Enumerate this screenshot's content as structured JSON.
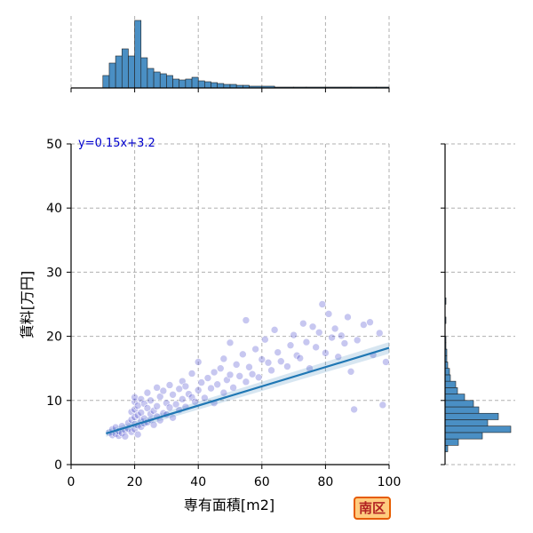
{
  "chart_data": {
    "type": "scatter",
    "xlabel": "専有面積[m2]",
    "ylabel": "賃料[万円]",
    "xlim": [
      0,
      100
    ],
    "ylim": [
      0,
      50
    ],
    "xticks": [
      "0",
      "20",
      "40",
      "60",
      "80",
      "100"
    ],
    "yticks": [
      "0",
      "10",
      "20",
      "30",
      "40",
      "50"
    ],
    "grid": true,
    "regression": {
      "label": "y=0.15x+3.2",
      "slope": 0.15,
      "intercept": 3.2,
      "x_range": [
        11,
        100
      ]
    },
    "scatter_points": [
      [
        12,
        5
      ],
      [
        13,
        4.6
      ],
      [
        13,
        5.5
      ],
      [
        14,
        4.8
      ],
      [
        14,
        5.8
      ],
      [
        15,
        4.5
      ],
      [
        15,
        5.2
      ],
      [
        16,
        4.9
      ],
      [
        16,
        6
      ],
      [
        17,
        5.3
      ],
      [
        17,
        4.4
      ],
      [
        18,
        5.6
      ],
      [
        18,
        6.5
      ],
      [
        19,
        5.1
      ],
      [
        19,
        7
      ],
      [
        19,
        8.2
      ],
      [
        20,
        5.5
      ],
      [
        20,
        6.3
      ],
      [
        20,
        7.4
      ],
      [
        20,
        8.6
      ],
      [
        20,
        9.8
      ],
      [
        20,
        10.5
      ],
      [
        21,
        4.7
      ],
      [
        21,
        6.1
      ],
      [
        21,
        7.7
      ],
      [
        21,
        9.2
      ],
      [
        22,
        5.9
      ],
      [
        22,
        6.8
      ],
      [
        22,
        8.1
      ],
      [
        22,
        10.2
      ],
      [
        23,
        6.4
      ],
      [
        23,
        7.2
      ],
      [
        23,
        9.5
      ],
      [
        24,
        6.6
      ],
      [
        24,
        8.8
      ],
      [
        24,
        11.2
      ],
      [
        25,
        7
      ],
      [
        25,
        7.9
      ],
      [
        25,
        10
      ],
      [
        26,
        6.2
      ],
      [
        26,
        8.4
      ],
      [
        27,
        7.5
      ],
      [
        27,
        9.1
      ],
      [
        27,
        12
      ],
      [
        28,
        6.9
      ],
      [
        28,
        10.6
      ],
      [
        29,
        8
      ],
      [
        29,
        11.5
      ],
      [
        30,
        7.8
      ],
      [
        30,
        9.6
      ],
      [
        31,
        8.9
      ],
      [
        31,
        12.4
      ],
      [
        32,
        7.3
      ],
      [
        32,
        10.9
      ],
      [
        33,
        9.4
      ],
      [
        34,
        8.5
      ],
      [
        34,
        11.8
      ],
      [
        35,
        10.2
      ],
      [
        35,
        13
      ],
      [
        36,
        9
      ],
      [
        36,
        12.2
      ],
      [
        37,
        11
      ],
      [
        38,
        10.5
      ],
      [
        38,
        14.2
      ],
      [
        39,
        9.8
      ],
      [
        40,
        11.6
      ],
      [
        40,
        16
      ],
      [
        41,
        12.8
      ],
      [
        42,
        10.4
      ],
      [
        43,
        13.5
      ],
      [
        44,
        11.9
      ],
      [
        45,
        9.6
      ],
      [
        45,
        14.4
      ],
      [
        46,
        12.5
      ],
      [
        47,
        15
      ],
      [
        48,
        11.2
      ],
      [
        48,
        16.5
      ],
      [
        49,
        13.2
      ],
      [
        50,
        14
      ],
      [
        50,
        19
      ],
      [
        51,
        12
      ],
      [
        52,
        15.6
      ],
      [
        53,
        13.8
      ],
      [
        54,
        17.2
      ],
      [
        55,
        12.9
      ],
      [
        55,
        22.5
      ],
      [
        56,
        15.2
      ],
      [
        57,
        14.1
      ],
      [
        58,
        18
      ],
      [
        59,
        13.6
      ],
      [
        60,
        16.4
      ],
      [
        61,
        19.5
      ],
      [
        62,
        15.9
      ],
      [
        63,
        14.7
      ],
      [
        64,
        21
      ],
      [
        65,
        17.5
      ],
      [
        66,
        16.1
      ],
      [
        68,
        15.3
      ],
      [
        69,
        18.6
      ],
      [
        70,
        20.2
      ],
      [
        71,
        17
      ],
      [
        72,
        16.6
      ],
      [
        73,
        22
      ],
      [
        74,
        19.1
      ],
      [
        75,
        15
      ],
      [
        76,
        21.5
      ],
      [
        77,
        18.3
      ],
      [
        78,
        20.6
      ],
      [
        79,
        25
      ],
      [
        80,
        17.4
      ],
      [
        81,
        23.5
      ],
      [
        82,
        19.8
      ],
      [
        83,
        21.2
      ],
      [
        84,
        16.8
      ],
      [
        85,
        20.1
      ],
      [
        86,
        18.9
      ],
      [
        87,
        23
      ],
      [
        88,
        14.5
      ],
      [
        89,
        8.6
      ],
      [
        90,
        19.4
      ],
      [
        92,
        21.8
      ],
      [
        94,
        22.2
      ],
      [
        95,
        17.1
      ],
      [
        97,
        20.5
      ],
      [
        98,
        9.3
      ],
      [
        99,
        16
      ]
    ],
    "top_histogram": [
      {
        "x0": 10,
        "x1": 12,
        "h": 14
      },
      {
        "x0": 12,
        "x1": 14,
        "h": 28
      },
      {
        "x0": 14,
        "x1": 16,
        "h": 36
      },
      {
        "x0": 16,
        "x1": 18,
        "h": 44
      },
      {
        "x0": 18,
        "x1": 20,
        "h": 36
      },
      {
        "x0": 20,
        "x1": 22,
        "h": 76
      },
      {
        "x0": 22,
        "x1": 24,
        "h": 34
      },
      {
        "x0": 24,
        "x1": 26,
        "h": 22
      },
      {
        "x0": 26,
        "x1": 28,
        "h": 18
      },
      {
        "x0": 28,
        "x1": 30,
        "h": 16
      },
      {
        "x0": 30,
        "x1": 32,
        "h": 14
      },
      {
        "x0": 32,
        "x1": 34,
        "h": 10
      },
      {
        "x0": 34,
        "x1": 36,
        "h": 9
      },
      {
        "x0": 36,
        "x1": 38,
        "h": 10
      },
      {
        "x0": 38,
        "x1": 40,
        "h": 12
      },
      {
        "x0": 40,
        "x1": 42,
        "h": 8
      },
      {
        "x0": 42,
        "x1": 44,
        "h": 7
      },
      {
        "x0": 44,
        "x1": 46,
        "h": 6
      },
      {
        "x0": 46,
        "x1": 48,
        "h": 5
      },
      {
        "x0": 48,
        "x1": 50,
        "h": 4
      },
      {
        "x0": 50,
        "x1": 52,
        "h": 4
      },
      {
        "x0": 52,
        "x1": 54,
        "h": 3
      },
      {
        "x0": 54,
        "x1": 56,
        "h": 3
      },
      {
        "x0": 56,
        "x1": 60,
        "h": 2
      },
      {
        "x0": 60,
        "x1": 64,
        "h": 2
      },
      {
        "x0": 64,
        "x1": 70,
        "h": 1
      },
      {
        "x0": 70,
        "x1": 74,
        "h": 1
      },
      {
        "x0": 74,
        "x1": 80,
        "h": 1
      },
      {
        "x0": 80,
        "x1": 88,
        "h": 1
      },
      {
        "x0": 88,
        "x1": 96,
        "h": 1
      },
      {
        "x0": 96,
        "x1": 100,
        "h": 1
      }
    ],
    "right_histogram": [
      {
        "y0": 2,
        "y1": 3,
        "w": 3
      },
      {
        "y0": 3,
        "y1": 4,
        "w": 15
      },
      {
        "y0": 4,
        "y1": 5,
        "w": 42
      },
      {
        "y0": 5,
        "y1": 6,
        "w": 74
      },
      {
        "y0": 6,
        "y1": 7,
        "w": 48
      },
      {
        "y0": 7,
        "y1": 8,
        "w": 60
      },
      {
        "y0": 8,
        "y1": 9,
        "w": 38
      },
      {
        "y0": 9,
        "y1": 10,
        "w": 32
      },
      {
        "y0": 10,
        "y1": 11,
        "w": 22
      },
      {
        "y0": 11,
        "y1": 12,
        "w": 14
      },
      {
        "y0": 12,
        "y1": 13,
        "w": 12
      },
      {
        "y0": 13,
        "y1": 14,
        "w": 6
      },
      {
        "y0": 14,
        "y1": 15,
        "w": 5
      },
      {
        "y0": 15,
        "y1": 16,
        "w": 3
      },
      {
        "y0": 16,
        "y1": 17,
        "w": 2
      },
      {
        "y0": 17,
        "y1": 18,
        "w": 2
      },
      {
        "y0": 18,
        "y1": 19,
        "w": 1
      },
      {
        "y0": 19,
        "y1": 20,
        "w": 1
      },
      {
        "y0": 22,
        "y1": 23,
        "w": 1
      },
      {
        "y0": 25,
        "y1": 26,
        "w": 1
      }
    ]
  },
  "badge_label": "南区",
  "colors": {
    "bar": "#4a8fc4",
    "point": "#4444cc",
    "line": "#1f77b4",
    "grid": "#b0b0b0",
    "badge_bg": "#ffcc80",
    "badge_border": "#e65c00",
    "badge_text": "#b22222"
  }
}
